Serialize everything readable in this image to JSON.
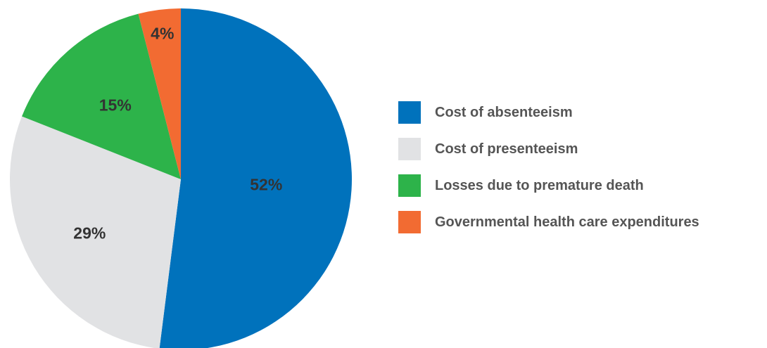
{
  "chart_data": {
    "type": "pie",
    "title": "",
    "slices": [
      {
        "label": "Cost of absenteeism",
        "value": 52,
        "display": "52%",
        "color": "#0072BC"
      },
      {
        "label": "Cost of presenteeism",
        "value": 29,
        "display": "29%",
        "color": "#E1E2E4"
      },
      {
        "label": "Losses due to premature death",
        "value": 15,
        "display": "15%",
        "color": "#2DB34A"
      },
      {
        "label": "Governmental health care expenditures",
        "value": 4,
        "display": "4%",
        "color": "#F26B32"
      }
    ],
    "start_angle": "12 o'clock",
    "direction": "clockwise",
    "legend_position": "right"
  }
}
